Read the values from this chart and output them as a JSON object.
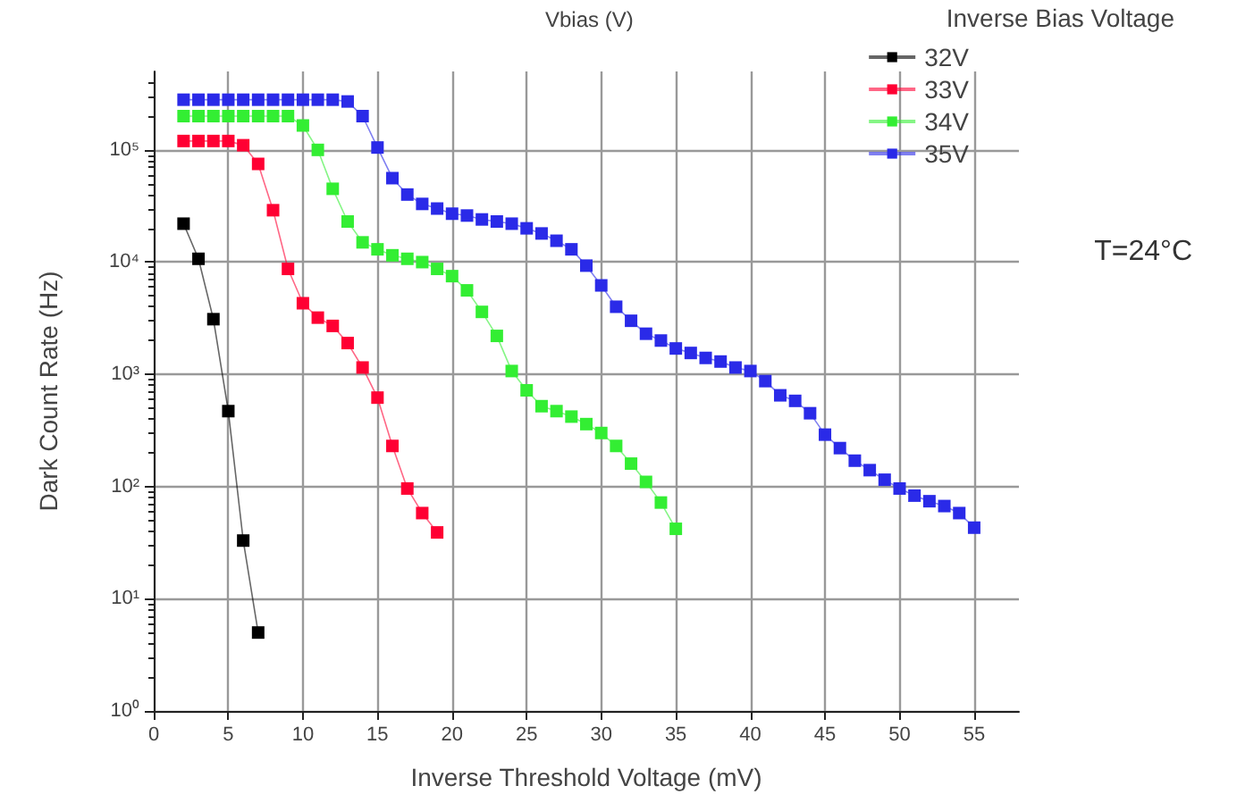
{
  "chart_data": {
    "type": "line",
    "title": "Vbias (V)",
    "xlabel": "Inverse Threshold Voltage (mV)",
    "ylabel": "Dark Count Rate (Hz)",
    "legend_title": "Inverse Bias Voltage",
    "annotations": [
      "T=24°C"
    ],
    "log": "y",
    "grid": true,
    "legend": "top right",
    "marker": "square",
    "line_style": "solid",
    "xlim": [
      0,
      58
    ],
    "xticks": [
      0,
      5,
      10,
      15,
      20,
      25,
      30,
      35,
      40,
      45,
      50,
      55
    ],
    "ylim": [
      1,
      500000
    ],
    "yticks": [
      {
        "value": 1,
        "label": "10⁰"
      },
      {
        "value": 10,
        "label": "10¹"
      },
      {
        "value": 100,
        "label": "10²"
      },
      {
        "value": 1000,
        "label": "10³"
      },
      {
        "value": 10000,
        "label": "10⁴"
      },
      {
        "value": 100000,
        "label": "10⁵"
      }
    ],
    "series": [
      {
        "name": "32V",
        "color": "#000000",
        "x": [
          2,
          3,
          4,
          5,
          6,
          7
        ],
        "values": [
          22000,
          10700,
          3100,
          470,
          33,
          5
        ]
      },
      {
        "name": "33V",
        "color": "#ff0033",
        "x": [
          2,
          3,
          4,
          5,
          6,
          7,
          8,
          9,
          10,
          11,
          12,
          13,
          14,
          15,
          16,
          17,
          18,
          19
        ],
        "values": [
          120000,
          120000,
          120000,
          120000,
          110000,
          75000,
          29000,
          8700,
          4300,
          3200,
          2700,
          1900,
          1150,
          620,
          230,
          96,
          58,
          39
        ]
      },
      {
        "name": "34V",
        "color": "#33ee33",
        "x": [
          2,
          3,
          4,
          5,
          6,
          7,
          8,
          9,
          10,
          11,
          12,
          13,
          14,
          15,
          16,
          17,
          18,
          19,
          20,
          21,
          22,
          23,
          24,
          25,
          26,
          27,
          28,
          29,
          30,
          31,
          32,
          33,
          34,
          35
        ],
        "values": [
          200000,
          200000,
          200000,
          200000,
          200000,
          200000,
          200000,
          200000,
          165000,
          100000,
          45000,
          23000,
          15000,
          13000,
          11500,
          10700,
          10000,
          8700,
          7500,
          5600,
          3600,
          2200,
          1070,
          720,
          520,
          470,
          420,
          360,
          300,
          230,
          160,
          110,
          72,
          42
        ]
      },
      {
        "name": "35V",
        "color": "#2a2ae8",
        "x": [
          2,
          3,
          4,
          5,
          6,
          7,
          8,
          9,
          10,
          11,
          12,
          13,
          14,
          15,
          16,
          17,
          18,
          19,
          20,
          21,
          22,
          23,
          24,
          25,
          26,
          27,
          28,
          29,
          30,
          31,
          32,
          33,
          34,
          35,
          36,
          37,
          38,
          39,
          40,
          41,
          42,
          43,
          44,
          45,
          46,
          47,
          48,
          49,
          50,
          51,
          52,
          53,
          54,
          55
        ],
        "values": [
          280000,
          280000,
          280000,
          280000,
          280000,
          280000,
          280000,
          280000,
          280000,
          280000,
          280000,
          270000,
          200000,
          105000,
          56000,
          40000,
          33000,
          30000,
          27000,
          26000,
          24000,
          23000,
          22000,
          20000,
          18000,
          15500,
          13000,
          9300,
          6200,
          4000,
          3000,
          2300,
          2000,
          1700,
          1550,
          1400,
          1300,
          1150,
          1070,
          870,
          650,
          580,
          450,
          290,
          220,
          170,
          140,
          115,
          96,
          83,
          74,
          67,
          58,
          43
        ]
      }
    ]
  }
}
